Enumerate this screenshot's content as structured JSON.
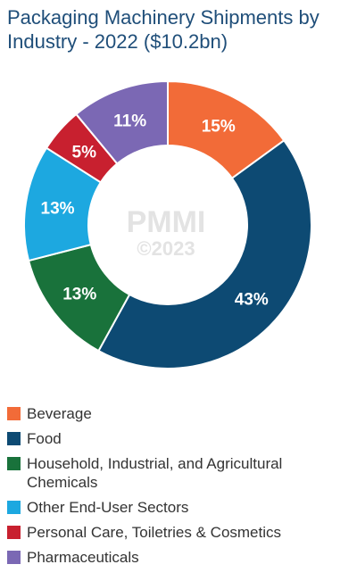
{
  "title": "Packaging Machinery Shipments by Industry - 2022 ($10.2bn)",
  "watermark": {
    "brand": "PMMI",
    "copyright": "©2023"
  },
  "chart_data": {
    "type": "pie",
    "donut": true,
    "title": "Packaging Machinery Shipments by Industry - 2022 ($10.2bn)",
    "unit": "%",
    "legend_position": "bottom",
    "slices": [
      {
        "name": "Beverage",
        "value": 15,
        "label": "15%",
        "color": "#f26b38"
      },
      {
        "name": "Food",
        "value": 43,
        "label": "43%",
        "color": "#0d4a73"
      },
      {
        "name": "Household, Industrial, and Agricultural Chemicals",
        "value": 13,
        "label": "13%",
        "color": "#19723b"
      },
      {
        "name": "Other End-User Sectors",
        "value": 13,
        "label": "13%",
        "color": "#1da8e0"
      },
      {
        "name": "Personal Care, Toiletries & Cosmetics",
        "value": 5,
        "label": "5%",
        "color": "#c8202f"
      },
      {
        "name": "Pharmaceuticals",
        "value": 11,
        "label": "11%",
        "color": "#7b68b4"
      }
    ]
  }
}
